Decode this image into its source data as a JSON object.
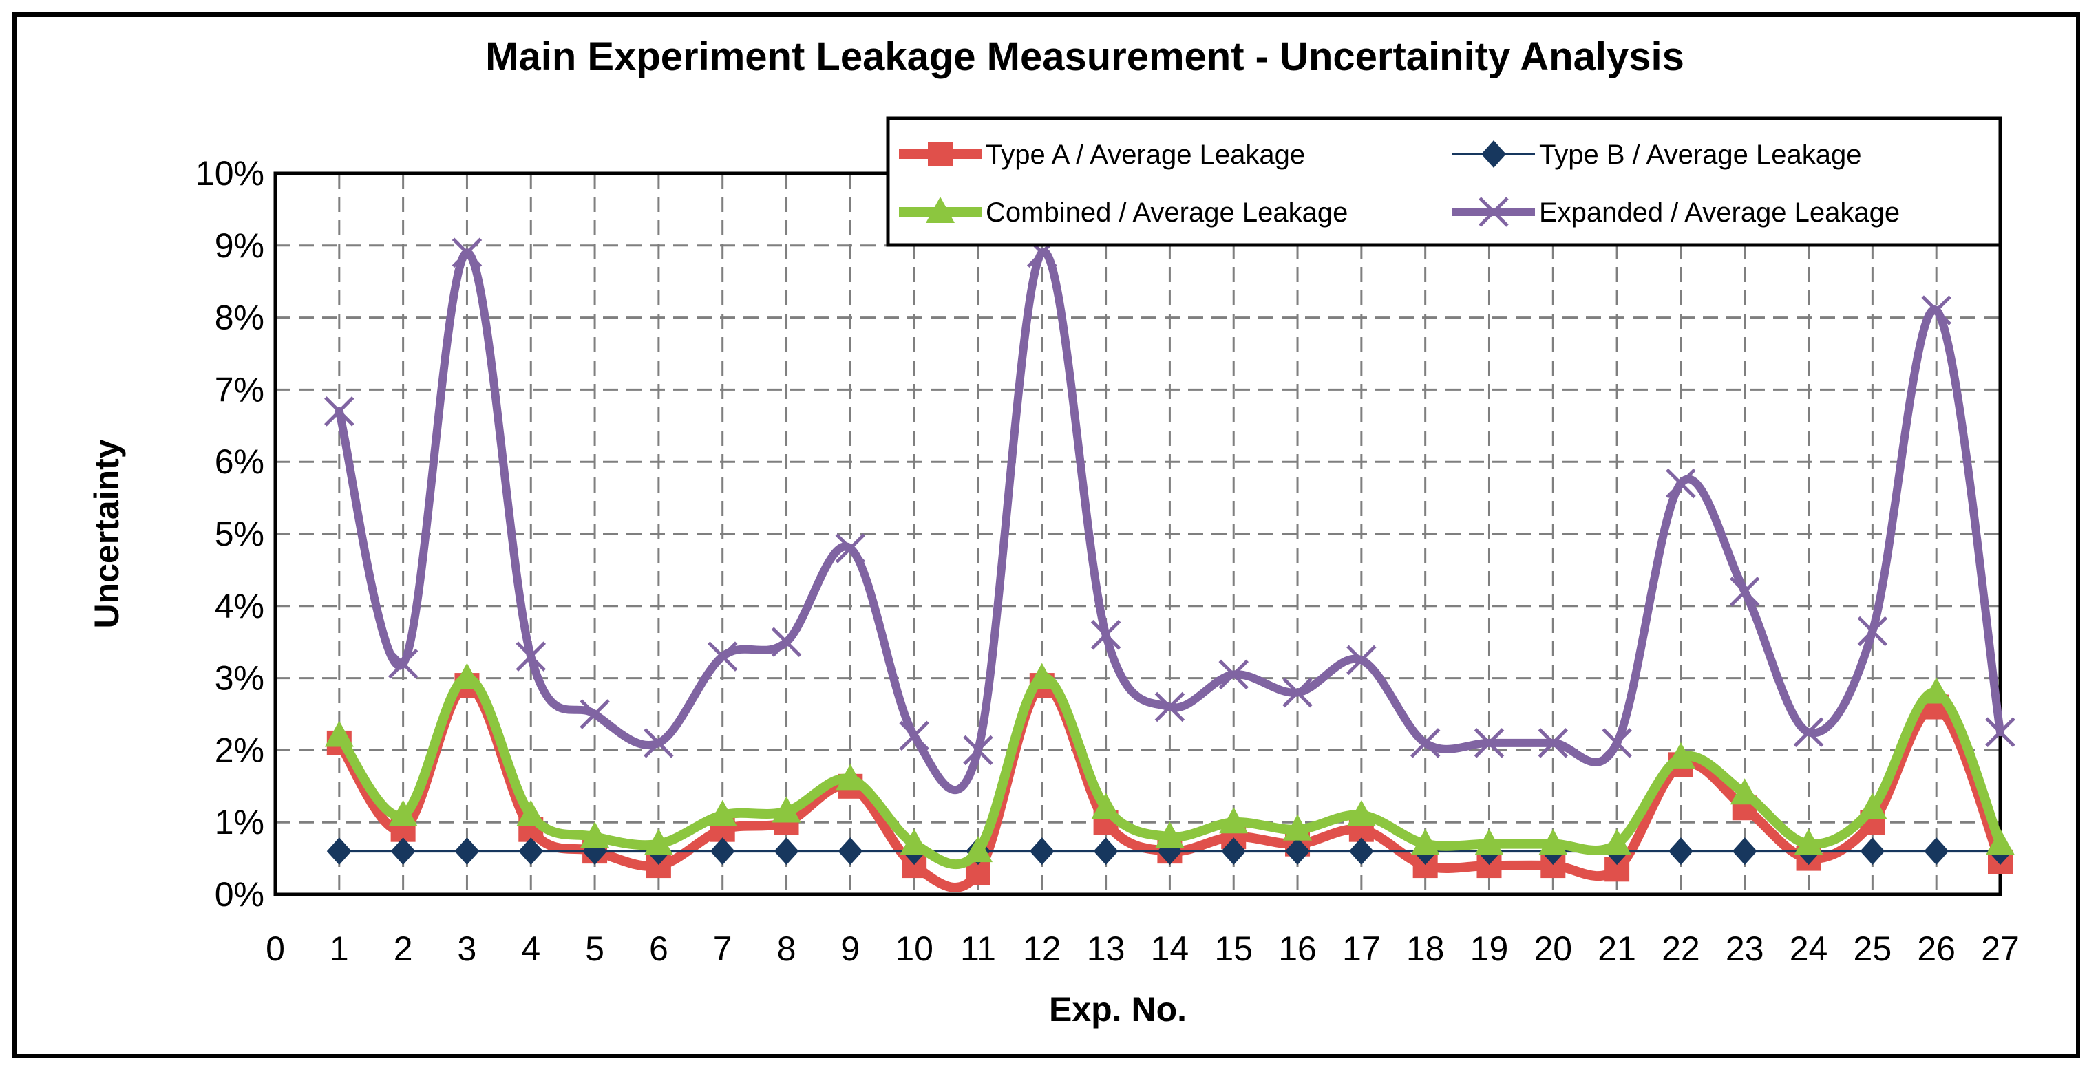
{
  "chart_data": {
    "type": "line",
    "title": "Main Experiment Leakage Measurement - Uncertainity Analysis",
    "xlabel": "Exp. No.",
    "ylabel": "Uncertainty",
    "xlim": [
      0,
      27
    ],
    "ylim": [
      0,
      10
    ],
    "x_ticks": [
      "0",
      "1",
      "2",
      "3",
      "4",
      "5",
      "6",
      "7",
      "8",
      "9",
      "10",
      "11",
      "12",
      "13",
      "14",
      "15",
      "16",
      "17",
      "18",
      "19",
      "20",
      "21",
      "22",
      "23",
      "24",
      "25",
      "26",
      "27"
    ],
    "y_ticks": [
      "0%",
      "1%",
      "2%",
      "3%",
      "4%",
      "5%",
      "6%",
      "7%",
      "8%",
      "9%",
      "10%"
    ],
    "grid": true,
    "legend_position": "top-right",
    "x": [
      1,
      2,
      3,
      4,
      5,
      6,
      7,
      8,
      9,
      10,
      11,
      12,
      13,
      14,
      15,
      16,
      17,
      18,
      19,
      20,
      21,
      22,
      23,
      24,
      25,
      26,
      27
    ],
    "series": [
      {
        "name": "Type A / Average Leakage",
        "color": "#e0504b",
        "marker": "square",
        "values": [
          2.1,
          0.9,
          2.9,
          0.9,
          0.6,
          0.4,
          0.9,
          1.0,
          1.5,
          0.4,
          0.3,
          2.9,
          1.0,
          0.6,
          0.8,
          0.7,
          0.9,
          0.4,
          0.4,
          0.4,
          0.35,
          1.8,
          1.2,
          0.5,
          1.0,
          2.6,
          0.45
        ]
      },
      {
        "name": "Type B / Average Leakage",
        "color": "#17375e",
        "marker": "diamond",
        "values": [
          0.6,
          0.6,
          0.6,
          0.6,
          0.6,
          0.6,
          0.6,
          0.6,
          0.6,
          0.6,
          0.6,
          0.6,
          0.6,
          0.6,
          0.6,
          0.6,
          0.6,
          0.6,
          0.6,
          0.6,
          0.6,
          0.6,
          0.6,
          0.6,
          0.6,
          0.6,
          0.6
        ]
      },
      {
        "name": "Combined / Average Leakage",
        "color": "#8cc63f",
        "marker": "triangle",
        "values": [
          2.2,
          1.1,
          3.0,
          1.1,
          0.8,
          0.7,
          1.1,
          1.15,
          1.6,
          0.7,
          0.6,
          3.0,
          1.2,
          0.8,
          1.0,
          0.9,
          1.1,
          0.7,
          0.7,
          0.7,
          0.7,
          1.9,
          1.4,
          0.7,
          1.2,
          2.8,
          0.7
        ]
      },
      {
        "name": "Expanded / Average Leakage",
        "color": "#8064a2",
        "marker": "x",
        "values": [
          6.7,
          3.2,
          8.9,
          3.3,
          2.5,
          2.1,
          3.3,
          3.5,
          4.8,
          2.2,
          2.0,
          8.9,
          3.6,
          2.6,
          3.05,
          2.8,
          3.25,
          2.1,
          2.1,
          2.1,
          2.1,
          5.7,
          4.2,
          2.25,
          3.65,
          8.1,
          2.25
        ]
      }
    ]
  }
}
